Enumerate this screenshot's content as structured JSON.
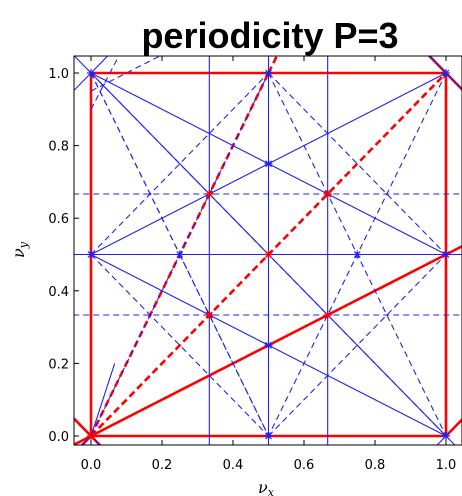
{
  "chart_data": {
    "type": "line",
    "title": "periodicity P=3",
    "xlabel": "ν",
    "xlabel_sub": "x",
    "ylabel": "ν",
    "ylabel_sub": "y",
    "xlim": [
      -0.05,
      1.05
    ],
    "ylim": [
      -0.05,
      1.05
    ],
    "xticks": [
      "0.0",
      "0.2",
      "0.4",
      "0.6",
      "0.8",
      "1.0"
    ],
    "yticks": [
      "0.0",
      "0.2",
      "0.4",
      "0.6",
      "0.8",
      "1.0"
    ],
    "grid": false,
    "colors": {
      "red": "#ff0000",
      "blue": "#2222ee"
    },
    "series": [
      {
        "color": "red",
        "style": "solid",
        "width": "thick",
        "segments": [
          [
            [
              0,
              0
            ],
            [
              1,
              0
            ]
          ],
          [
            [
              0,
              1
            ],
            [
              1,
              1
            ]
          ],
          [
            [
              0,
              0
            ],
            [
              0,
              1
            ]
          ],
          [
            [
              1,
              0
            ],
            [
              1,
              1
            ]
          ],
          [
            [
              0,
              0
            ],
            [
              1,
              0.5
            ]
          ],
          [
            [
              1,
              0.5
            ],
            [
              1.2,
              0.6
            ]
          ],
          [
            [
              0,
              0
            ],
            [
              -0.1,
              -0.05
            ]
          ],
          [
            [
              0,
              0
            ],
            [
              0.2,
              -0.2
            ]
          ],
          [
            [
              0,
              0
            ],
            [
              -0.1,
              0.1
            ]
          ],
          [
            [
              0,
              0
            ],
            [
              -0.1,
              -0.1
            ]
          ],
          [
            [
              1,
              1
            ],
            [
              1.1,
              0.9
            ]
          ],
          [
            [
              1,
              1
            ],
            [
              0.9,
              1.1
            ]
          ],
          [
            [
              1,
              0
            ],
            [
              1.1,
              0.1
            ]
          ]
        ]
      },
      {
        "color": "red",
        "style": "dashed",
        "width": "thick",
        "segments": [
          [
            [
              0,
              0
            ],
            [
              0.5,
              1
            ]
          ],
          [
            [
              0.5,
              1
            ],
            [
              0.55,
              1.1
            ]
          ],
          [
            [
              0,
              0
            ],
            [
              1,
              1
            ]
          ]
        ]
      },
      {
        "color": "blue",
        "style": "solid",
        "width": "thin",
        "segments": [
          [
            [
              0.3333,
              -0.05
            ],
            [
              0.3333,
              1.05
            ]
          ],
          [
            [
              0.5,
              -0.05
            ],
            [
              0.5,
              1.05
            ]
          ],
          [
            [
              0.6667,
              -0.05
            ],
            [
              0.6667,
              1.05
            ]
          ],
          [
            [
              -0.05,
              0.5
            ],
            [
              1.05,
              0.5
            ]
          ],
          [
            [
              0,
              0.5
            ],
            [
              1,
              1
            ]
          ],
          [
            [
              0,
              0.5
            ],
            [
              1,
              0
            ]
          ],
          [
            [
              0,
              1
            ],
            [
              1,
              0.5
            ]
          ],
          [
            [
              0,
              1
            ],
            [
              0.6667,
              0.3333
            ]
          ],
          [
            [
              0.6667,
              0.3333
            ],
            [
              1,
              0
            ]
          ],
          [
            [
              0,
              0
            ],
            [
              0.0667,
              0.2
            ]
          ],
          [
            [
              0,
              1
            ],
            [
              -0.1,
              1.1
            ]
          ],
          [
            [
              0,
              1
            ],
            [
              0.1,
              1.1
            ]
          ],
          [
            [
              0,
              1
            ],
            [
              -0.1,
              0.9
            ]
          ],
          [
            [
              1,
              1
            ],
            [
              0.9,
              1.1
            ]
          ],
          [
            [
              1,
              1
            ],
            [
              1.1,
              0.9
            ]
          ],
          [
            [
              1,
              0
            ],
            [
              1.1,
              -0.1
            ]
          ],
          [
            [
              1,
              0
            ],
            [
              0.9,
              -0.1
            ]
          ],
          [
            [
              0,
              0
            ],
            [
              0.2,
              -0.2
            ]
          ],
          [
            [
              0,
              0
            ],
            [
              -0.1,
              -0.1
            ]
          ]
        ]
      },
      {
        "color": "blue",
        "style": "dashed",
        "width": "thin",
        "segments": [
          [
            [
              -0.05,
              0.6667
            ],
            [
              1.05,
              0.6667
            ]
          ],
          [
            [
              -0.05,
              0.3333
            ],
            [
              1.05,
              0.3333
            ]
          ],
          [
            [
              0,
              0.5
            ],
            [
              0.5,
              1
            ]
          ],
          [
            [
              0,
              0.5
            ],
            [
              0.5,
              0
            ]
          ],
          [
            [
              0.5,
              1
            ],
            [
              1,
              0.5
            ]
          ],
          [
            [
              0.5,
              0
            ],
            [
              1,
              0.5
            ]
          ],
          [
            [
              0,
              1
            ],
            [
              1,
              0
            ]
          ],
          [
            [
              0,
              1
            ],
            [
              0.5,
              0
            ]
          ],
          [
            [
              0.5,
              1
            ],
            [
              1,
              0
            ]
          ],
          [
            [
              0,
              1
            ],
            [
              0.25,
              0.5
            ]
          ],
          [
            [
              0.25,
              0.5
            ],
            [
              0.5,
              0
            ]
          ],
          [
            [
              0,
              0.95
            ],
            [
              0.2,
              1.05
            ]
          ],
          [
            [
              0,
              0.9
            ],
            [
              0.08,
              1.05
            ]
          ],
          [
            [
              1,
              1
            ],
            [
              0.5,
              0
            ]
          ],
          [
            [
              0,
              0
            ],
            [
              0.5,
              1
            ]
          ]
        ]
      }
    ],
    "markers": [
      {
        "color": "blue",
        "points": [
          [
            0.3333,
            0.6667
          ],
          [
            0.3333,
            0.3333
          ],
          [
            0.6667,
            0.6667
          ],
          [
            0.6667,
            0.3333
          ],
          [
            0.5,
            0.5
          ],
          [
            0.5,
            0.75
          ],
          [
            0.5,
            0.25
          ],
          [
            0.25,
            0.5
          ],
          [
            0.75,
            0.5
          ],
          [
            0,
            0.5
          ],
          [
            0,
            1
          ],
          [
            1,
            1
          ],
          [
            1,
            0
          ],
          [
            0.5,
            1
          ],
          [
            0.5,
            0
          ],
          [
            1,
            0.5
          ]
        ]
      },
      {
        "color": "red",
        "points": [
          [
            0,
            0
          ],
          [
            0.3333,
            0.6667
          ],
          [
            0.6667,
            0.6667
          ],
          [
            0.6667,
            0.3333
          ],
          [
            0.3333,
            0.3333
          ],
          [
            0.5,
            0.5
          ]
        ]
      }
    ]
  }
}
